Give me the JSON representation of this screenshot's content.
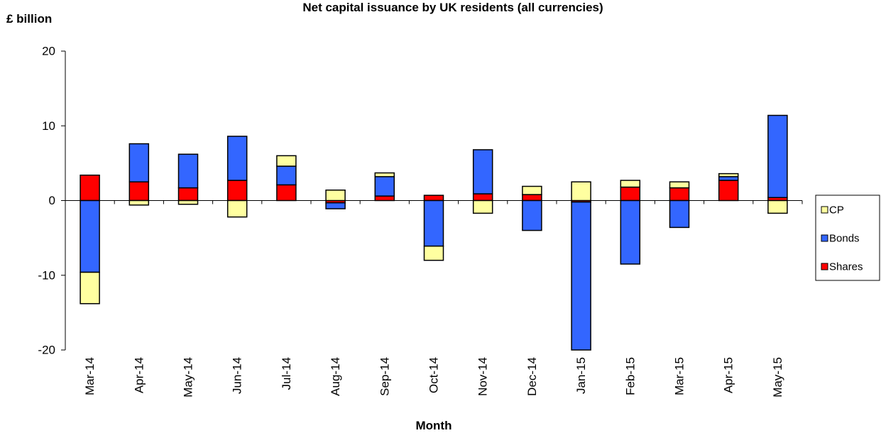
{
  "chart_data": {
    "type": "bar",
    "stacked": true,
    "title": "Net capital issuance by UK residents (all currencies)",
    "unit_label": "£ billion",
    "xlabel": "Month",
    "ylabel": "",
    "ylim": [
      -20,
      20
    ],
    "yticks": [
      20,
      10,
      0,
      -10,
      -20
    ],
    "grid": false,
    "legend_position": "right",
    "categories": [
      "Mar-14",
      "Apr-14",
      "May-14",
      "Jun-14",
      "Jul-14",
      "Aug-14",
      "Sep-14",
      "Oct-14",
      "Nov-14",
      "Dec-14",
      "Jan-15",
      "Feb-15",
      "Mar-15",
      "Apr-15",
      "May-15"
    ],
    "series": [
      {
        "name": "Shares",
        "color": "#ff0000",
        "values": [
          3.4,
          2.5,
          1.7,
          2.7,
          2.1,
          -0.3,
          0.6,
          0.7,
          0.9,
          0.8,
          -0.2,
          1.8,
          1.7,
          2.7,
          0.4
        ]
      },
      {
        "name": "Bonds",
        "color": "#3366ff",
        "values": [
          -9.6,
          5.1,
          4.5,
          5.9,
          2.5,
          -0.8,
          2.6,
          -6.1,
          5.9,
          -4.0,
          -19.8,
          -8.5,
          -3.6,
          0.5,
          11.0
        ]
      },
      {
        "name": "CP",
        "color": "#ffffa0",
        "values": [
          -4.2,
          -0.6,
          -0.5,
          -2.2,
          1.4,
          1.4,
          0.5,
          -1.9,
          -1.7,
          1.1,
          2.5,
          0.9,
          0.8,
          0.4,
          -1.7
        ]
      }
    ],
    "legend_order": [
      "CP",
      "Bonds",
      "Shares"
    ]
  }
}
